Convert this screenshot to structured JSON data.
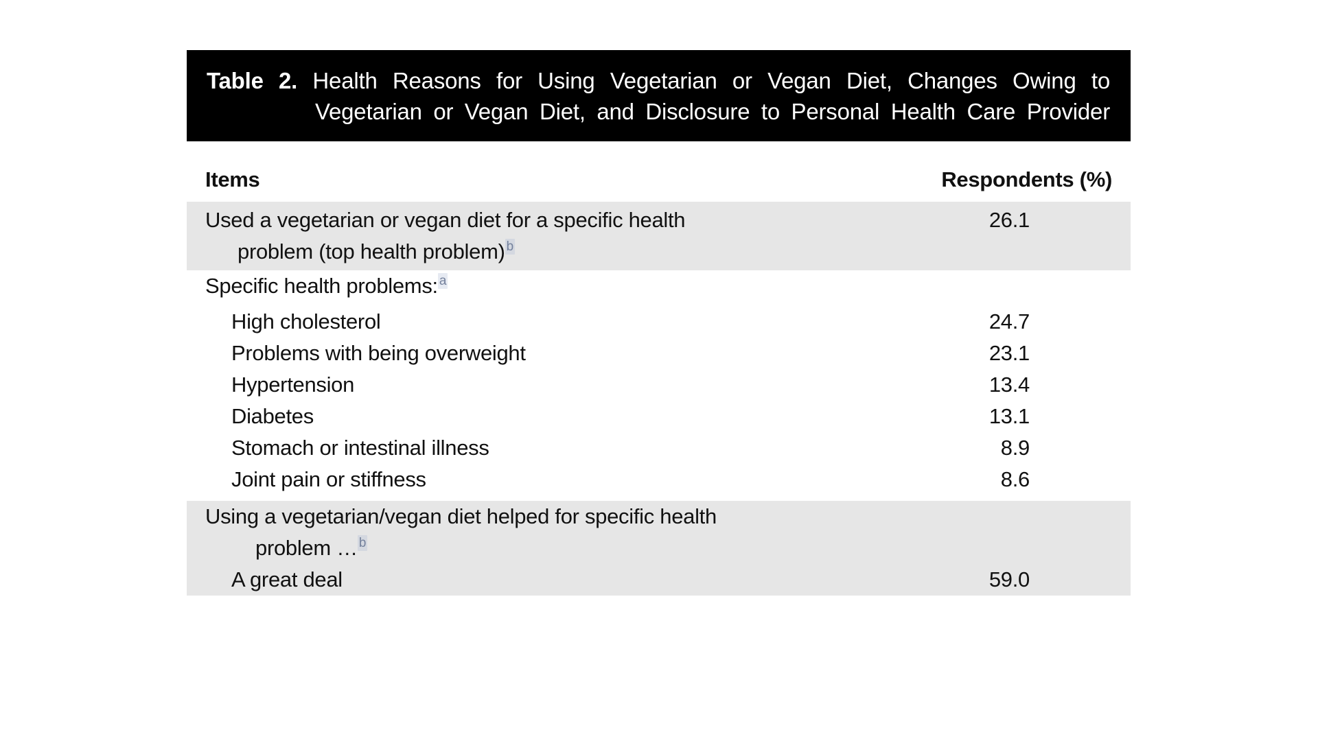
{
  "table": {
    "title": {
      "label": "Table 2.",
      "line1": "Health Reasons for Using Vegetarian or Vegan Diet, Changes Owing to",
      "line2": "Vegetarian or Vegan Diet, and Disclosure to Personal Health Care Provider"
    },
    "columns": {
      "items": "Items",
      "respondents": "Respondents (%)"
    },
    "rows": [
      {
        "shaded": true,
        "padded": true,
        "gap_above": 0,
        "value": "26.1",
        "lines": [
          {
            "text": "Used a vegetarian or vegan diet for a specific health",
            "indent": 0,
            "sup": ""
          },
          {
            "text": "problem (top health problem)",
            "indent": 2,
            "sup": "b"
          }
        ]
      },
      {
        "shaded": false,
        "padded": false,
        "gap_above": 0,
        "value": "",
        "lines": [
          {
            "text": "Specific health problems:",
            "indent": 0,
            "sup": "a"
          }
        ]
      },
      {
        "shaded": false,
        "padded": false,
        "gap_above": 6,
        "value": "24.7",
        "lines": [
          {
            "text": "High cholesterol",
            "indent": 1,
            "sup": ""
          }
        ]
      },
      {
        "shaded": false,
        "padded": false,
        "gap_above": 0,
        "value": "23.1",
        "lines": [
          {
            "text": "Problems with being overweight",
            "indent": 1,
            "sup": ""
          }
        ]
      },
      {
        "shaded": false,
        "padded": false,
        "gap_above": 0,
        "value": "13.4",
        "lines": [
          {
            "text": "Hypertension",
            "indent": 1,
            "sup": ""
          }
        ]
      },
      {
        "shaded": false,
        "padded": false,
        "gap_above": 0,
        "value": "13.1",
        "lines": [
          {
            "text": "Diabetes",
            "indent": 1,
            "sup": ""
          }
        ]
      },
      {
        "shaded": false,
        "padded": false,
        "gap_above": 0,
        "value": "8.9",
        "lines": [
          {
            "text": "Stomach or intestinal illness",
            "indent": 1,
            "sup": ""
          }
        ]
      },
      {
        "shaded": false,
        "padded": false,
        "gap_above": 0,
        "value": "8.6",
        "lines": [
          {
            "text": "Joint pain or stiffness",
            "indent": 1,
            "sup": ""
          }
        ]
      },
      {
        "shaded": true,
        "padded": false,
        "gap_above": 8,
        "value": "",
        "lines": [
          {
            "text": "Using a vegetarian/vegan diet helped for specific health",
            "indent": 0,
            "sup": ""
          },
          {
            "text": "problem …",
            "indent": 3,
            "sup": "b"
          }
        ]
      },
      {
        "shaded": true,
        "padded": false,
        "gap_above": 0,
        "value": "59.0",
        "lines": [
          {
            "text": "A great deal",
            "indent": 1,
            "sup": ""
          }
        ]
      }
    ]
  },
  "colors": {
    "title_bar_bg": "#000000",
    "title_bar_text": "#ffffff",
    "row_shade": "#e6e6e6",
    "body_text": "#111111",
    "footnote_marker": "#74819c"
  }
}
